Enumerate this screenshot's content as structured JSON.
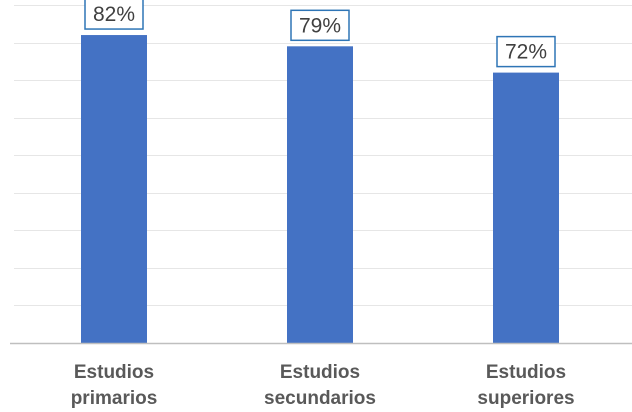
{
  "chart_data": {
    "type": "bar",
    "categories": [
      [
        "Estudios",
        "primarios"
      ],
      [
        "Estudios",
        "secundarios"
      ],
      [
        "Estudios",
        "superiores"
      ]
    ],
    "values": [
      82,
      79,
      72
    ],
    "data_labels": [
      "82%",
      "79%",
      "72%"
    ],
    "value_unit": "%",
    "ylim": [
      0,
      90
    ],
    "grid": true,
    "legend": "none",
    "colors": {
      "bar": "#4472C4",
      "label_border": "#2E75B6",
      "label_text": "#404040",
      "category_text": "#595959",
      "gridline": "#E6E6E6",
      "axis": "#BFBFBF"
    }
  }
}
